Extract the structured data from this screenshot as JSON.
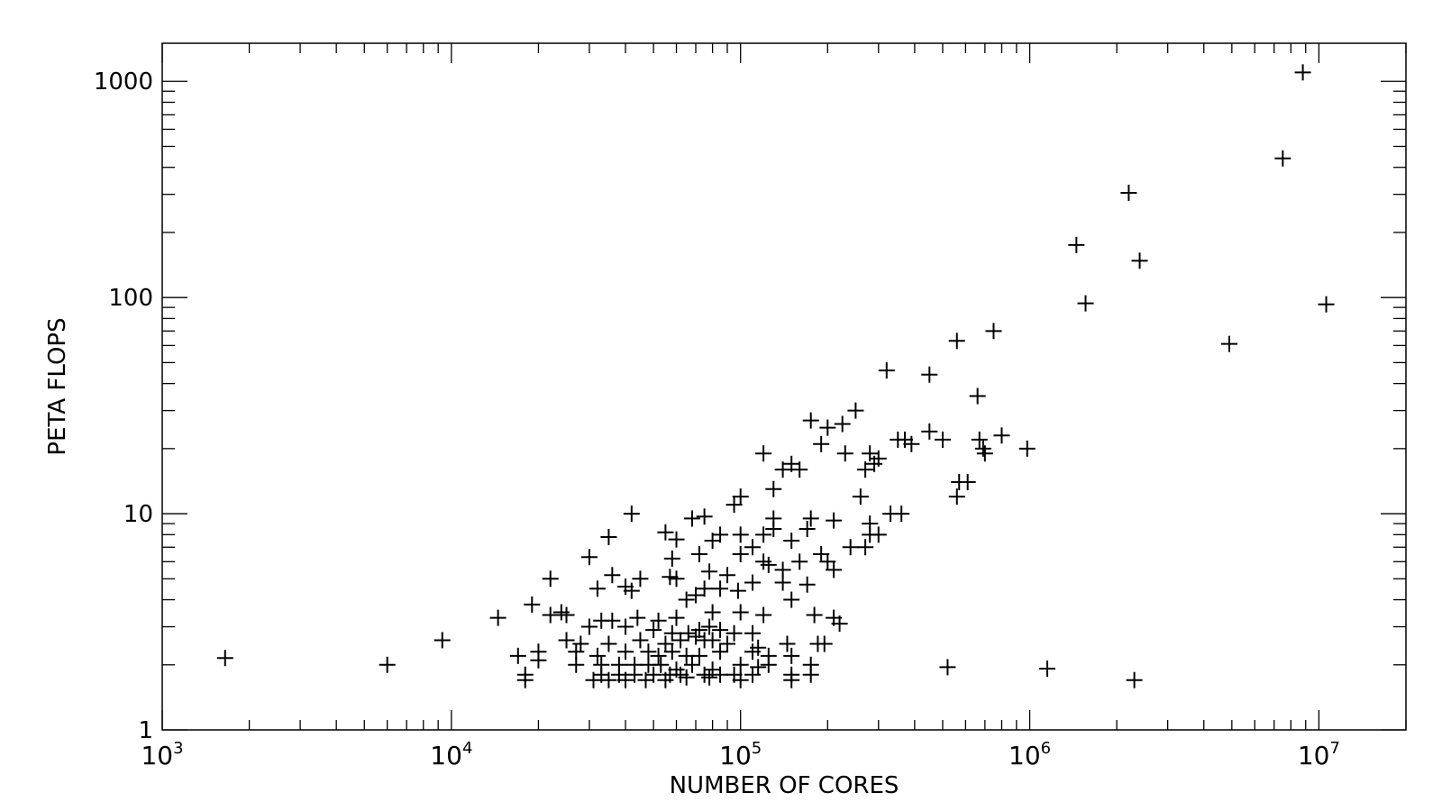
{
  "chart_data": {
    "type": "scatter",
    "xlabel": "NUMBER OF CORES",
    "ylabel": "PETA FLOPS",
    "x_scale": "log",
    "y_scale": "log",
    "xlim": [
      1000,
      20000000
    ],
    "ylim": [
      1,
      1500
    ],
    "x_ticks": [
      {
        "value": 1000,
        "base": "10",
        "exp": "3"
      },
      {
        "value": 10000,
        "base": "10",
        "exp": "4"
      },
      {
        "value": 100000,
        "base": "10",
        "exp": "5"
      },
      {
        "value": 1000000,
        "base": "10",
        "exp": "6"
      },
      {
        "value": 10000000,
        "base": "10",
        "exp": "7"
      }
    ],
    "y_ticks": [
      {
        "value": 1,
        "label": "1"
      },
      {
        "value": 10,
        "label": "10"
      },
      {
        "value": 100,
        "label": "100"
      },
      {
        "value": 1000,
        "label": "1000"
      }
    ],
    "grid": false,
    "marker": "plus",
    "marker_color": "#000000",
    "points": [
      [
        8800000,
        1100
      ],
      [
        7500000,
        440
      ],
      [
        2200000,
        305
      ],
      [
        2400000,
        148
      ],
      [
        1450000,
        175
      ],
      [
        1560000,
        94
      ],
      [
        10600000,
        93
      ],
      [
        4900000,
        61
      ],
      [
        750000,
        70
      ],
      [
        560000,
        63
      ],
      [
        320000,
        46
      ],
      [
        450000,
        44
      ],
      [
        660000,
        35
      ],
      [
        250000,
        30
      ],
      [
        175000,
        27
      ],
      [
        200000,
        25
      ],
      [
        225000,
        26
      ],
      [
        450000,
        24
      ],
      [
        500000,
        22
      ],
      [
        670000,
        22
      ],
      [
        800000,
        23
      ],
      [
        370000,
        22
      ],
      [
        350000,
        22
      ],
      [
        390000,
        21
      ],
      [
        980000,
        20
      ],
      [
        700000,
        19
      ],
      [
        690000,
        20
      ],
      [
        230000,
        19
      ],
      [
        190000,
        21
      ],
      [
        280000,
        19
      ],
      [
        300000,
        18
      ],
      [
        290000,
        17
      ],
      [
        270000,
        16
      ],
      [
        120000,
        19
      ],
      [
        150000,
        17
      ],
      [
        140000,
        16
      ],
      [
        160000,
        16
      ],
      [
        130000,
        13
      ],
      [
        260000,
        12
      ],
      [
        560000,
        12
      ],
      [
        570000,
        14
      ],
      [
        610000,
        14
      ],
      [
        330000,
        10
      ],
      [
        360000,
        10
      ],
      [
        100000,
        12
      ],
      [
        95000,
        11
      ],
      [
        42000,
        10
      ],
      [
        68000,
        9.5
      ],
      [
        75000,
        9.7
      ],
      [
        130000,
        9.5
      ],
      [
        175000,
        9.5
      ],
      [
        170000,
        8.5
      ],
      [
        210000,
        9.3
      ],
      [
        280000,
        9
      ],
      [
        280000,
        8
      ],
      [
        300000,
        8
      ],
      [
        270000,
        7
      ],
      [
        240000,
        7
      ],
      [
        55000,
        8.2
      ],
      [
        60000,
        7.6
      ],
      [
        35000,
        7.8
      ],
      [
        85000,
        8
      ],
      [
        100000,
        8
      ],
      [
        120000,
        8
      ],
      [
        130000,
        8.5
      ],
      [
        150000,
        7.5
      ],
      [
        80000,
        7.5
      ],
      [
        110000,
        7
      ],
      [
        30000,
        6.3
      ],
      [
        72000,
        6.5
      ],
      [
        58000,
        6.2
      ],
      [
        100000,
        6.5
      ],
      [
        120000,
        6
      ],
      [
        125000,
        5.8
      ],
      [
        140000,
        5.5
      ],
      [
        160000,
        6
      ],
      [
        190000,
        6.5
      ],
      [
        200000,
        6
      ],
      [
        210000,
        5.5
      ],
      [
        36000,
        5.2
      ],
      [
        45000,
        5
      ],
      [
        22000,
        5
      ],
      [
        60000,
        5
      ],
      [
        57000,
        5.1
      ],
      [
        78000,
        5.4
      ],
      [
        90000,
        5.2
      ],
      [
        110000,
        4.8
      ],
      [
        140000,
        4.8
      ],
      [
        170000,
        4.7
      ],
      [
        40000,
        4.6
      ],
      [
        42000,
        4.4
      ],
      [
        32000,
        4.5
      ],
      [
        75000,
        4.5
      ],
      [
        85000,
        4.5
      ],
      [
        98000,
        4.4
      ],
      [
        65000,
        4.0
      ],
      [
        70000,
        4.2
      ],
      [
        150000,
        4.0
      ],
      [
        19000,
        3.8
      ],
      [
        24000,
        3.5
      ],
      [
        25000,
        3.4
      ],
      [
        22000,
        3.4
      ],
      [
        14500,
        3.3
      ],
      [
        33000,
        3.2
      ],
      [
        36000,
        3.2
      ],
      [
        44000,
        3.3
      ],
      [
        52000,
        3.2
      ],
      [
        60000,
        3.3
      ],
      [
        80000,
        3.5
      ],
      [
        100000,
        3.5
      ],
      [
        120000,
        3.4
      ],
      [
        180000,
        3.4
      ],
      [
        210000,
        3.3
      ],
      [
        220000,
        3.1
      ],
      [
        30000,
        3.0
      ],
      [
        40000,
        3.0
      ],
      [
        50000,
        2.9
      ],
      [
        58000,
        2.8
      ],
      [
        66000,
        2.8
      ],
      [
        72000,
        2.9
      ],
      [
        78000,
        3.0
      ],
      [
        85000,
        2.9
      ],
      [
        95000,
        2.8
      ],
      [
        110000,
        2.8
      ],
      [
        25000,
        2.6
      ],
      [
        28000,
        2.5
      ],
      [
        35000,
        2.5
      ],
      [
        45000,
        2.6
      ],
      [
        55000,
        2.5
      ],
      [
        62000,
        2.6
      ],
      [
        70000,
        2.7
      ],
      [
        75000,
        2.6
      ],
      [
        80000,
        2.6
      ],
      [
        90000,
        2.5
      ],
      [
        115000,
        2.4
      ],
      [
        145000,
        2.5
      ],
      [
        185000,
        2.5
      ],
      [
        195000,
        2.5
      ],
      [
        9300,
        2.6
      ],
      [
        20000,
        2.3
      ],
      [
        17000,
        2.2
      ],
      [
        27000,
        2.3
      ],
      [
        32000,
        2.2
      ],
      [
        40000,
        2.3
      ],
      [
        48000,
        2.3
      ],
      [
        52000,
        2.2
      ],
      [
        58000,
        2.3
      ],
      [
        65000,
        2.2
      ],
      [
        72000,
        2.2
      ],
      [
        85000,
        2.3
      ],
      [
        110000,
        2.3
      ],
      [
        125000,
        2.2
      ],
      [
        150000,
        2.2
      ],
      [
        1650,
        2.15
      ],
      [
        6000,
        2.0
      ],
      [
        20000,
        2.1
      ],
      [
        27000,
        2.0
      ],
      [
        33000,
        2.0
      ],
      [
        38000,
        2.0
      ],
      [
        43000,
        2.0
      ],
      [
        48000,
        2.0
      ],
      [
        53000,
        2.0
      ],
      [
        60000,
        1.9
      ],
      [
        68000,
        2.0
      ],
      [
        80000,
        1.9
      ],
      [
        100000,
        2.0
      ],
      [
        115000,
        1.95
      ],
      [
        125000,
        2.0
      ],
      [
        175000,
        2.0
      ],
      [
        520000,
        1.95
      ],
      [
        1150000,
        1.92
      ],
      [
        18000,
        1.8
      ],
      [
        33000,
        1.8
      ],
      [
        38000,
        1.8
      ],
      [
        43000,
        1.8
      ],
      [
        50000,
        1.8
      ],
      [
        57000,
        1.8
      ],
      [
        62000,
        1.8
      ],
      [
        75000,
        1.8
      ],
      [
        85000,
        1.8
      ],
      [
        95000,
        1.8
      ],
      [
        110000,
        1.8
      ],
      [
        150000,
        1.8
      ],
      [
        175000,
        1.8
      ],
      [
        18000,
        1.7
      ],
      [
        31000,
        1.7
      ],
      [
        35000,
        1.7
      ],
      [
        40000,
        1.7
      ],
      [
        47000,
        1.7
      ],
      [
        55000,
        1.7
      ],
      [
        65000,
        1.75
      ],
      [
        78000,
        1.75
      ],
      [
        100000,
        1.7
      ],
      [
        150000,
        1.7
      ],
      [
        2300000,
        1.7
      ]
    ]
  }
}
